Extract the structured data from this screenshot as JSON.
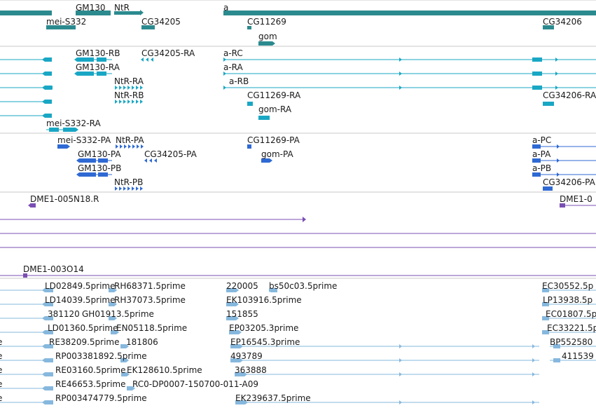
{
  "colors": {
    "gene": "#2b8a8e",
    "mrna": "#19a7c4",
    "protein": "#2f69d3",
    "clone": "#7a4fb3",
    "est": "#86b8de",
    "divider": "#c8c8c8"
  },
  "tracks": [
    {
      "id": "genes",
      "color_key": "gene",
      "labels": [
        {
          "name": "GM130",
          "text": "GM130"
        },
        {
          "name": "NtR",
          "text": "NtR"
        },
        {
          "name": "a",
          "text": "a"
        },
        {
          "name": "mei-S332",
          "text": "mei-S332"
        },
        {
          "name": "CG34205",
          "text": "CG34205"
        },
        {
          "name": "CG11269",
          "text": "CG11269"
        },
        {
          "name": "CG34206",
          "text": "CG34206"
        },
        {
          "name": "gom",
          "text": "gom"
        }
      ]
    },
    {
      "id": "transcripts",
      "color_key": "mrna",
      "labels": [
        {
          "name": "GM130-RB",
          "text": "GM130-RB"
        },
        {
          "name": "CG34205-RA",
          "text": "CG34205-RA"
        },
        {
          "name": "a-RC",
          "text": "a-RC"
        },
        {
          "name": "GM130-RA",
          "text": "GM130-RA"
        },
        {
          "name": "a-RA",
          "text": "a-RA"
        },
        {
          "name": "NtR-RA",
          "text": "NtR-RA"
        },
        {
          "name": "a-RB",
          "text": "a-RB"
        },
        {
          "name": "NtR-RB",
          "text": "NtR-RB"
        },
        {
          "name": "CG11269-RA",
          "text": "CG11269-RA"
        },
        {
          "name": "CG34206-RA",
          "text": "CG34206-RA"
        },
        {
          "name": "gom-RA",
          "text": "gom-RA"
        },
        {
          "name": "mei-S332-RA",
          "text": "mei-S332-RA"
        }
      ]
    },
    {
      "id": "proteins",
      "color_key": "protein",
      "labels": [
        {
          "name": "mei-S332-PA",
          "text": "mei-S332-PA"
        },
        {
          "name": "NtR-PA",
          "text": "NtR-PA"
        },
        {
          "name": "CG11269-PA",
          "text": "CG11269-PA"
        },
        {
          "name": "a-PC",
          "text": "a-PC"
        },
        {
          "name": "GM130-PA",
          "text": "GM130-PA"
        },
        {
          "name": "CG34205-PA",
          "text": "CG34205-PA"
        },
        {
          "name": "gom-PA",
          "text": "gom-PA"
        },
        {
          "name": "a-PA",
          "text": "a-PA"
        },
        {
          "name": "GM130-PB",
          "text": "GM130-PB"
        },
        {
          "name": "a-PB",
          "text": "a-PB"
        },
        {
          "name": "NtR-PB",
          "text": "NtR-PB"
        },
        {
          "name": "CG34206-PA",
          "text": "CG34206-PA"
        }
      ]
    },
    {
      "id": "clones",
      "color_key": "clone",
      "labels": [
        {
          "name": "DME1-005N18.R",
          "text": "DME1-005N18.R"
        },
        {
          "name": "DME1-0-right",
          "text": "DME1-0"
        },
        {
          "name": "DME1-003O14",
          "text": "DME1-003O14"
        }
      ]
    },
    {
      "id": "ests",
      "color_key": "est",
      "labels": [
        {
          "name": "LD02849",
          "text": "LD02849.5prime"
        },
        {
          "name": "RH68371",
          "text": "RH68371.5prime"
        },
        {
          "name": "220005",
          "text": "220005"
        },
        {
          "name": "bs50c03",
          "text": "bs50c03.5prime"
        },
        {
          "name": "EC30552",
          "text": "EC30552.5p"
        },
        {
          "name": "LD14039",
          "text": "LD14039.5prime"
        },
        {
          "name": "RH37073",
          "text": "RH37073.5prime"
        },
        {
          "name": "EK103916",
          "text": "EK103916.5prime"
        },
        {
          "name": "LP13938",
          "text": "LP13938.5p"
        },
        {
          "name": "381120",
          "text": "381120"
        },
        {
          "name": "GH01913",
          "text": "GH01913.5prime"
        },
        {
          "name": "151855",
          "text": "151855"
        },
        {
          "name": "EC01807",
          "text": "EC01807.5p"
        },
        {
          "name": "LD01360",
          "text": "LD01360.5prime"
        },
        {
          "name": "EN05118",
          "text": "EN05118.5prime"
        },
        {
          "name": "EP03205",
          "text": "EP03205.3prime"
        },
        {
          "name": "EC33221",
          "text": "EC33221.5p"
        },
        {
          "name": "e-1",
          "text": "e"
        },
        {
          "name": "RE38209",
          "text": "RE38209.5prime"
        },
        {
          "name": "181806",
          "text": "181806"
        },
        {
          "name": "EP16545",
          "text": "EP16545.3prime"
        },
        {
          "name": "BP552580",
          "text": "BP552580"
        },
        {
          "name": "e-2",
          "text": "e"
        },
        {
          "name": "RP003381892",
          "text": "RP003381892.5prime"
        },
        {
          "name": "493789",
          "text": "493789"
        },
        {
          "name": "411539",
          "text": "411539"
        },
        {
          "name": "e-3",
          "text": "e"
        },
        {
          "name": "RE03160",
          "text": "RE03160.5prime"
        },
        {
          "name": "EK128610",
          "text": "EK128610.5prime"
        },
        {
          "name": "363888",
          "text": "363888"
        },
        {
          "name": "e-4",
          "text": "e"
        },
        {
          "name": "RE46653",
          "text": "RE46653.5prime"
        },
        {
          "name": "RC0-DP0007",
          "text": "RC0-DP0007-150700-011-A09"
        },
        {
          "name": "e-5",
          "text": "e"
        },
        {
          "name": "RP003474779",
          "text": "RP003474779.5prime"
        },
        {
          "name": "EK239637",
          "text": "EK239637.5prime"
        }
      ]
    }
  ]
}
